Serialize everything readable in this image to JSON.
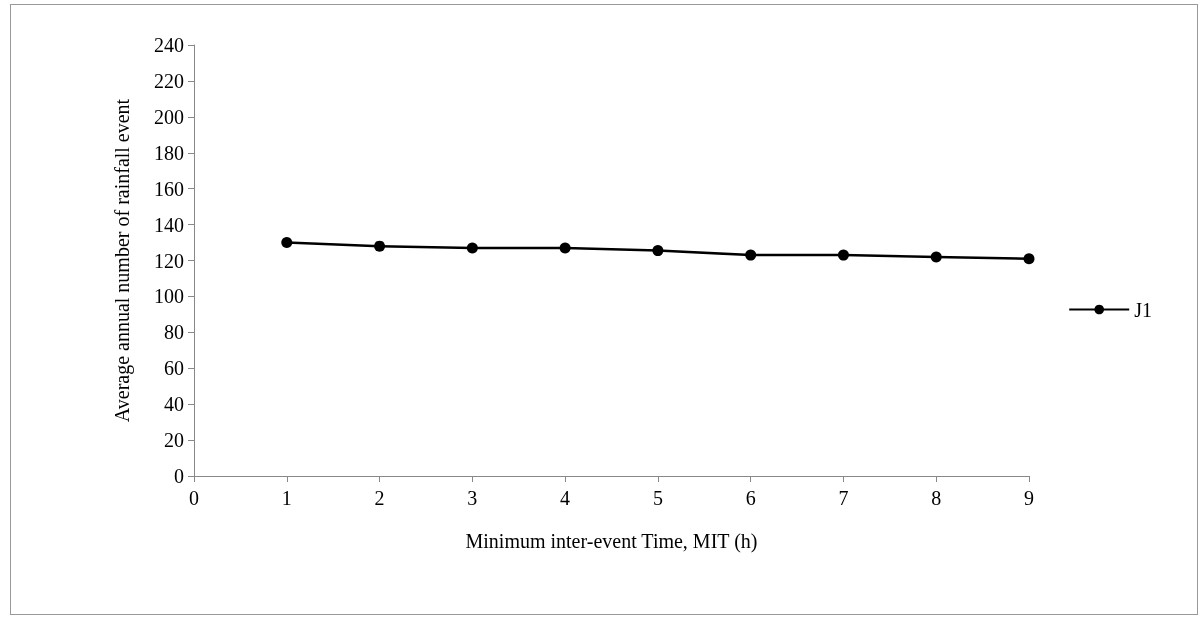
{
  "chart_data": {
    "type": "line",
    "xlabel": "Minimum inter-event Time, MIT (h)",
    "ylabel": "Average annual number of rainfall event",
    "x": [
      1,
      2,
      3,
      4,
      5,
      6,
      7,
      8,
      9
    ],
    "series": [
      {
        "name": "J1",
        "color": "#000000",
        "values": [
          130,
          128,
          127,
          127,
          125.5,
          123,
          123,
          122,
          121
        ]
      }
    ],
    "xlim": [
      0,
      9
    ],
    "xticks": [
      0,
      1,
      2,
      3,
      4,
      5,
      6,
      7,
      8,
      9
    ],
    "ylim": [
      0,
      240
    ],
    "yticks": [
      0,
      20,
      40,
      60,
      80,
      100,
      120,
      140,
      160,
      180,
      200,
      220,
      240
    ],
    "grid": false,
    "legend": "right",
    "marker": "circle",
    "line_style": "solid"
  }
}
